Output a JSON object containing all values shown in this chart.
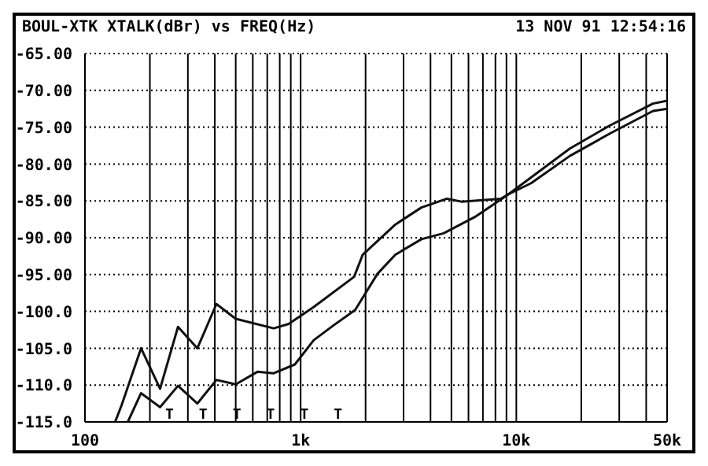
{
  "chart_data": {
    "type": "line",
    "title": "BOUL-XTK XTALK(dBr) vs FREQ(Hz)",
    "annotations": [
      "13 NOV 91 12:54:16",
      "T",
      "T",
      "T",
      "T",
      "T",
      "T"
    ],
    "series": [
      {
        "color": "#111111",
        "x": [
          138,
          148,
          182,
          223,
          270,
          332,
          407,
          500,
          750,
          880,
          1150,
          1770,
          1940,
          2750,
          3630,
          4770,
          5560,
          8500,
          9200,
          17700,
          27000,
          43000,
          50000
        ],
        "values": [
          -115,
          -112.7,
          -105,
          -110.5,
          -102.1,
          -105,
          -99,
          -101,
          -102.3,
          -101.7,
          -99.4,
          -95.3,
          -92.3,
          -88.2,
          -85.9,
          -84.7,
          -85.1,
          -84.7,
          -84.1,
          -77.9,
          -74.8,
          -71.8,
          -71.4
        ]
      },
      {
        "color": "#111111",
        "x": [
          158,
          182,
          223,
          270,
          332,
          407,
          500,
          630,
          750,
          940,
          1150,
          1420,
          1790,
          2270,
          2750,
          3630,
          4600,
          6500,
          9200,
          11700,
          17700,
          27000,
          43000,
          50000
        ],
        "values": [
          -115,
          -111.1,
          -113,
          -110.1,
          -112.5,
          -109.3,
          -109.9,
          -108.2,
          -108.4,
          -107.2,
          -103.9,
          -101.9,
          -99.8,
          -94.9,
          -92.3,
          -90.2,
          -89.4,
          -87.1,
          -84.1,
          -82.6,
          -78.9,
          -75.9,
          -72.8,
          -72.5
        ]
      }
    ],
    "log": "x",
    "xlim": [
      100,
      50000
    ],
    "ylim": [
      -115,
      -65
    ],
    "xticks": [
      {
        "value": 100,
        "label": "100"
      },
      {
        "value": 200,
        "label": null
      },
      {
        "value": 300,
        "label": null
      },
      {
        "value": 400,
        "label": null
      },
      {
        "value": 500,
        "label": null
      },
      {
        "value": 600,
        "label": null
      },
      {
        "value": 700,
        "label": null
      },
      {
        "value": 800,
        "label": null
      },
      {
        "value": 900,
        "label": null
      },
      {
        "value": 1000,
        "label": "1k"
      },
      {
        "value": 2000,
        "label": null
      },
      {
        "value": 3000,
        "label": null
      },
      {
        "value": 4000,
        "label": null
      },
      {
        "value": 5000,
        "label": null
      },
      {
        "value": 6000,
        "label": null
      },
      {
        "value": 7000,
        "label": null
      },
      {
        "value": 8000,
        "label": null
      },
      {
        "value": 9000,
        "label": null
      },
      {
        "value": 10000,
        "label": "10k"
      },
      {
        "value": 20000,
        "label": null
      },
      {
        "value": 30000,
        "label": null
      },
      {
        "value": 40000,
        "label": null
      },
      {
        "value": 50000,
        "label": "50k"
      }
    ],
    "yticks": [
      {
        "value": -115,
        "label": "-115.0"
      },
      {
        "value": -110,
        "label": "-110.0"
      },
      {
        "value": -105,
        "label": "-105.0"
      },
      {
        "value": -100,
        "label": "-100.0"
      },
      {
        "value": -95,
        "label": "-95.00"
      },
      {
        "value": -90,
        "label": "-90.00"
      },
      {
        "value": -85,
        "label": "-85.00"
      },
      {
        "value": -80,
        "label": "-80.00"
      },
      {
        "value": -75,
        "label": "-75.00"
      },
      {
        "value": -70,
        "label": "-70.00"
      },
      {
        "value": -65,
        "label": "-65.00"
      }
    ],
    "grid": true,
    "marker": "none",
    "line_style": "solid"
  }
}
